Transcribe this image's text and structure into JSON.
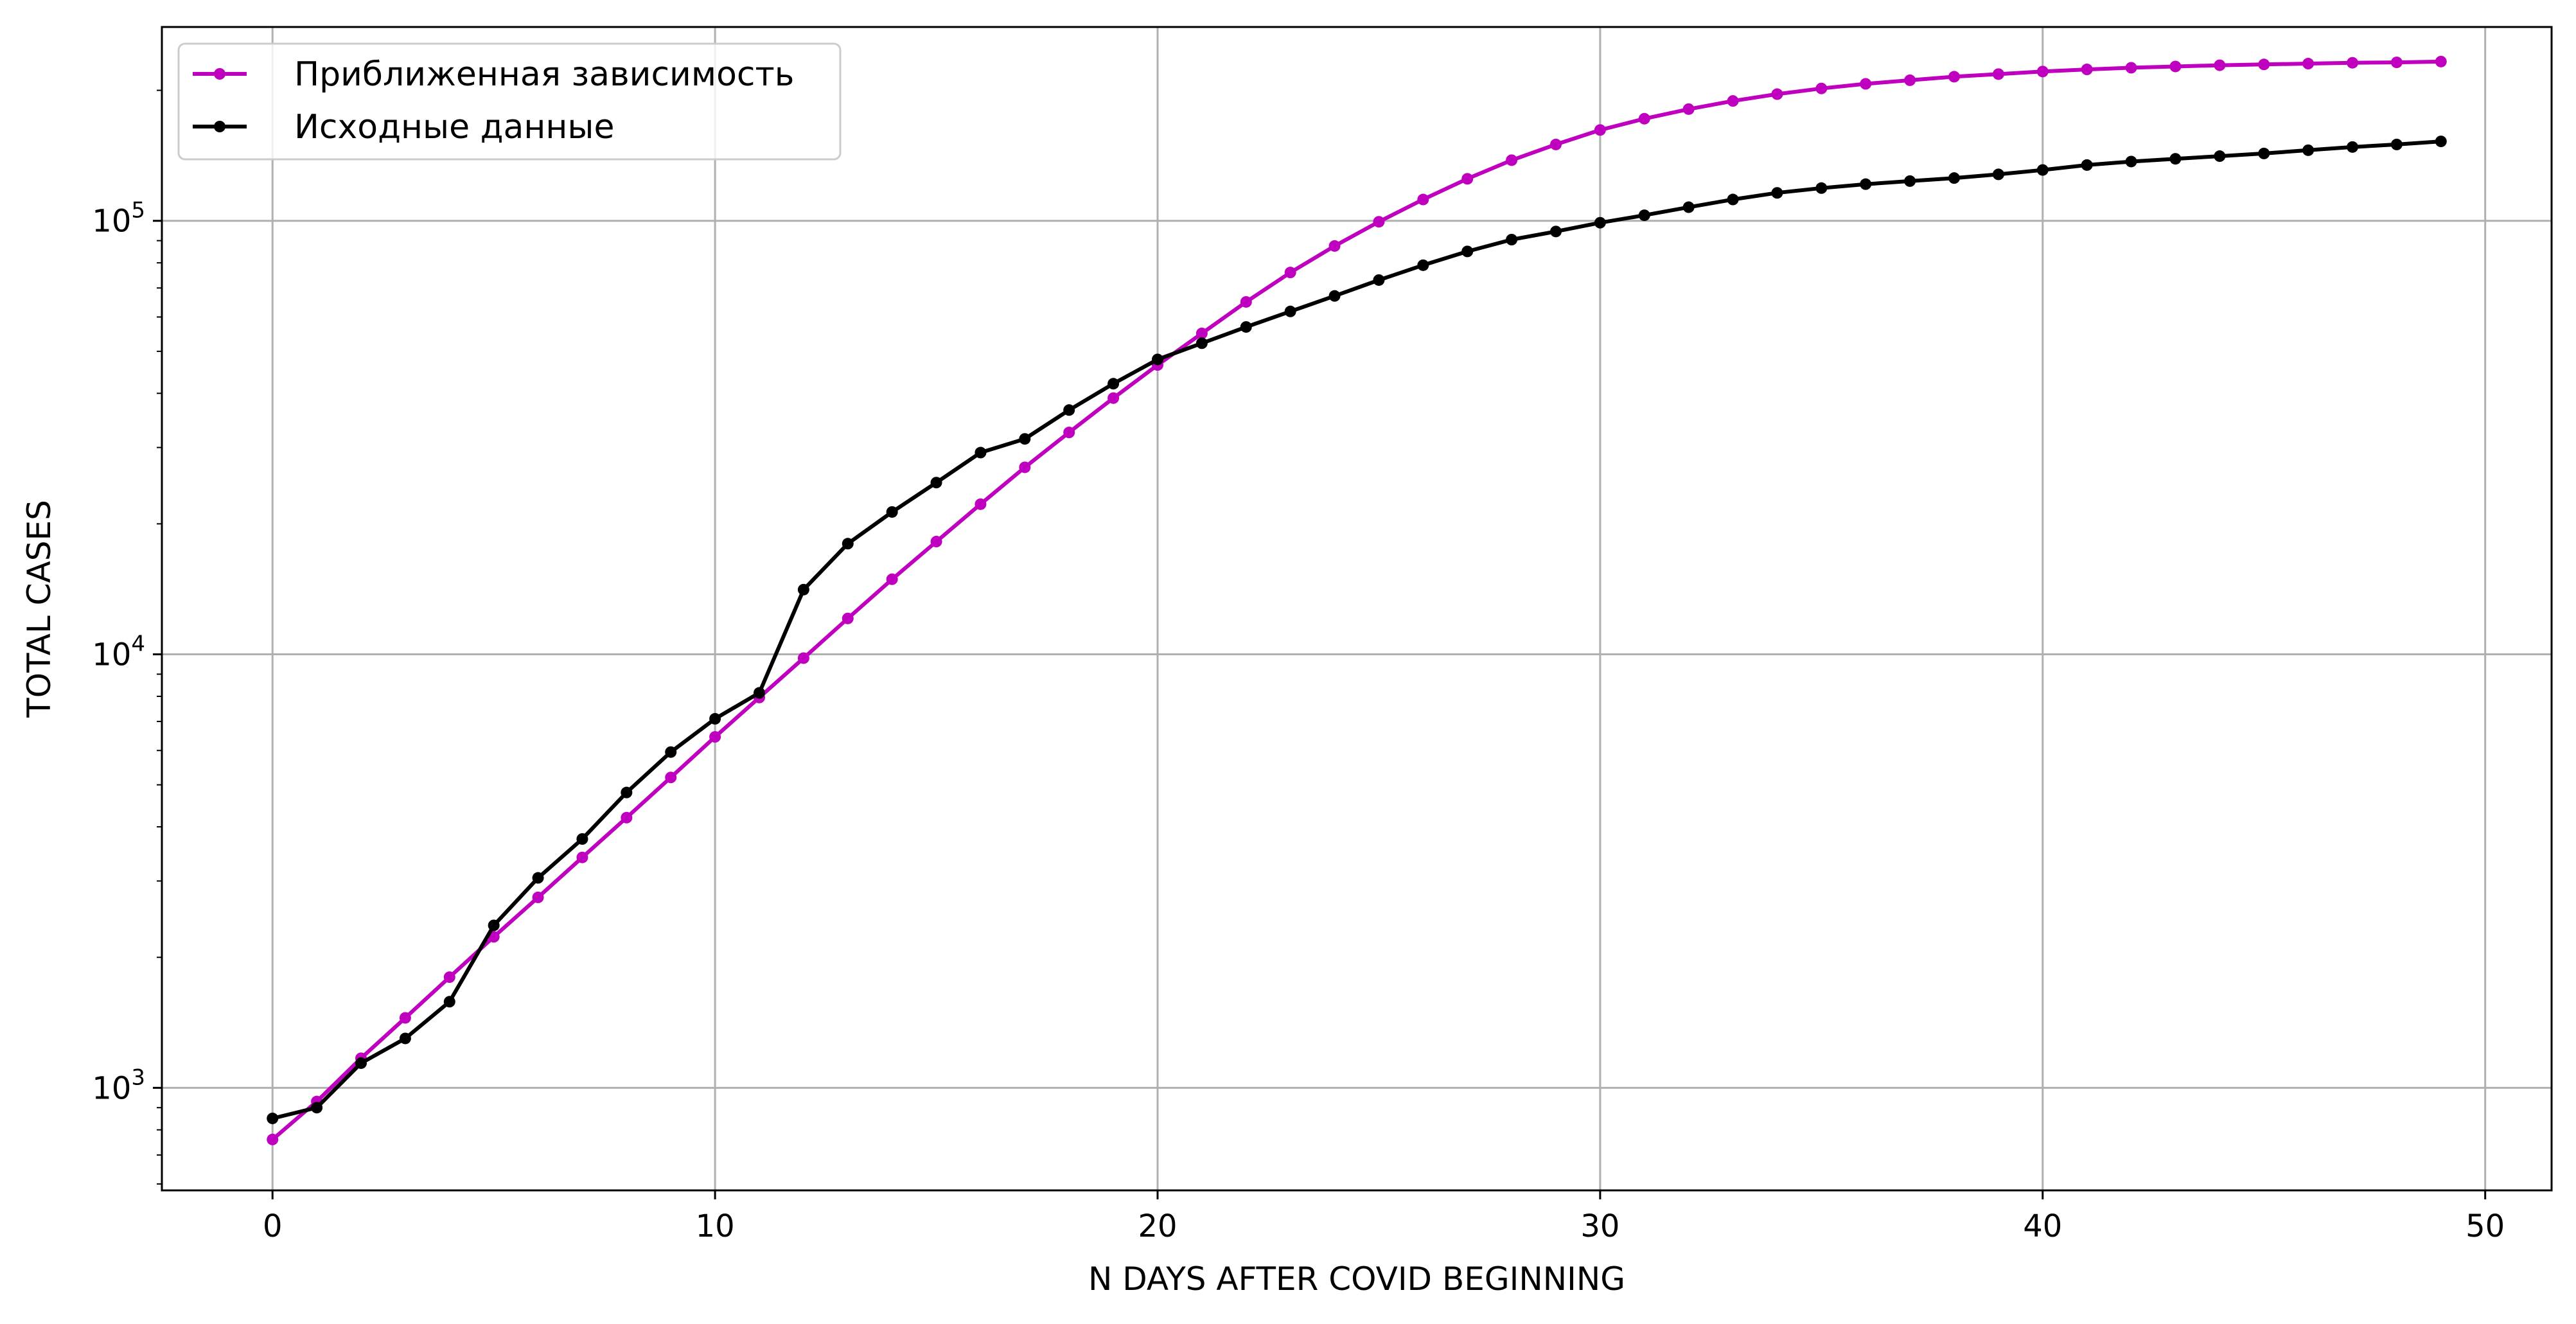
{
  "chart_data": {
    "type": "line",
    "title": "",
    "xlabel": "N DAYS AFTER COVID BEGINNING",
    "ylabel": "TOTAL CASES",
    "yscale": "log",
    "xlim": [
      -2.5,
      51.5
    ],
    "ylim": [
      580,
      280000
    ],
    "x_ticks": [
      0,
      10,
      20,
      30,
      40,
      50
    ],
    "y_major_ticks": [
      {
        "value": 1000,
        "base": "10",
        "exp": "3"
      },
      {
        "value": 10000,
        "base": "10",
        "exp": "4"
      },
      {
        "value": 100000,
        "base": "10",
        "exp": "5"
      }
    ],
    "grid": true,
    "legend_position": "top-left",
    "x": [
      0,
      1,
      2,
      3,
      4,
      5,
      6,
      7,
      8,
      9,
      10,
      11,
      12,
      13,
      14,
      15,
      16,
      17,
      18,
      19,
      20,
      21,
      22,
      23,
      24,
      25,
      26,
      27,
      28,
      29,
      30,
      31,
      32,
      33,
      34,
      35,
      36,
      37,
      38,
      39,
      40,
      41,
      42,
      43,
      44,
      45,
      46,
      47,
      48,
      49
    ],
    "series": [
      {
        "name": "Приближенная зависимость",
        "color": "#bf00bf",
        "values": [
          760,
          930,
          1170,
          1450,
          1800,
          2230,
          2750,
          3400,
          4200,
          5200,
          6450,
          7950,
          9800,
          12100,
          14900,
          18200,
          22200,
          27000,
          32500,
          39000,
          46500,
          55000,
          65000,
          76000,
          87500,
          99500,
          112000,
          125000,
          138000,
          150000,
          162000,
          172000,
          181000,
          189000,
          196000,
          202000,
          207000,
          211000,
          215000,
          218000,
          221000,
          223500,
          225500,
          227000,
          228500,
          229500,
          230500,
          231500,
          232000,
          233000
        ]
      },
      {
        "name": "Исходные данные",
        "color": "#000000",
        "values": [
          850,
          900,
          1140,
          1300,
          1580,
          2370,
          3050,
          3750,
          4800,
          5950,
          7100,
          8150,
          14100,
          18000,
          21300,
          24900,
          29200,
          31400,
          36600,
          42100,
          47900,
          52200,
          56900,
          61800,
          67100,
          73000,
          79000,
          85000,
          90500,
          94500,
          99000,
          103000,
          107500,
          112000,
          116000,
          119000,
          121500,
          123500,
          125500,
          128000,
          131000,
          134500,
          137000,
          139000,
          141000,
          143000,
          145500,
          148000,
          150000,
          152500
        ]
      }
    ]
  }
}
